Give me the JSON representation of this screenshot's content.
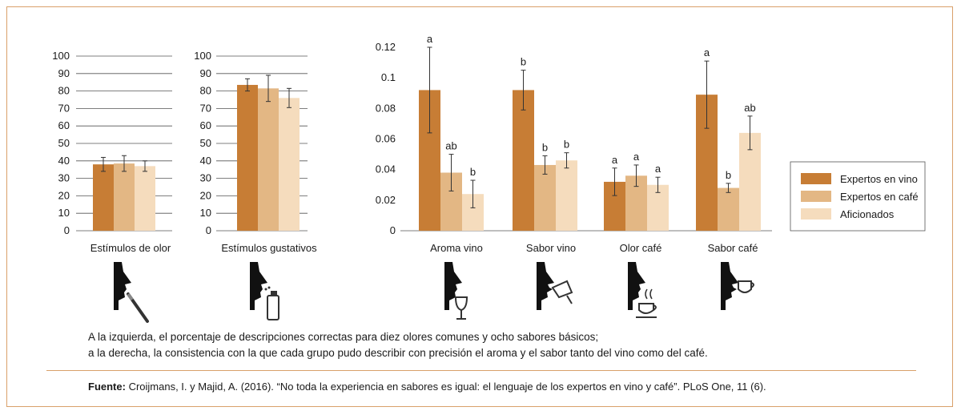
{
  "colors": {
    "expertos_vino": "#c77d35",
    "expertos_cafe": "#e3b784",
    "aficionados": "#f5dcbd",
    "frame": "#d9a06a"
  },
  "chart_data": [
    {
      "type": "bar",
      "categories": [
        "Estímulos de olor"
      ],
      "series": [
        {
          "name": "Expertos en vino",
          "values": [
            38
          ],
          "err": [
            4
          ]
        },
        {
          "name": "Expertos en café",
          "values": [
            38.5
          ],
          "err": [
            4.5
          ]
        },
        {
          "name": "Aficionados",
          "values": [
            37
          ],
          "err": [
            3
          ]
        }
      ],
      "yticks": [
        "0",
        "10",
        "20",
        "30",
        "40",
        "50",
        "60",
        "70",
        "80",
        "90",
        "100"
      ],
      "ylim": [
        0,
        100
      ],
      "grid": true
    },
    {
      "type": "bar",
      "categories": [
        "Estímulos gustativos"
      ],
      "series": [
        {
          "name": "Expertos en vino",
          "values": [
            83.5
          ],
          "err": [
            3.5
          ]
        },
        {
          "name": "Expertos en café",
          "values": [
            81.5
          ],
          "err": [
            7.5
          ]
        },
        {
          "name": "Aficionados",
          "values": [
            76
          ],
          "err": [
            5.5
          ]
        }
      ],
      "yticks": [
        "0",
        "10",
        "20",
        "30",
        "40",
        "50",
        "60",
        "70",
        "80",
        "90",
        "100"
      ],
      "ylim": [
        0,
        100
      ],
      "grid": true
    },
    {
      "type": "bar",
      "categories": [
        "Aroma vino",
        "Sabor vino",
        "Olor café",
        "Sabor café"
      ],
      "series": [
        {
          "name": "Expertos en vino",
          "values": [
            0.092,
            0.092,
            0.032,
            0.089
          ],
          "err": [
            0.028,
            0.013,
            0.009,
            0.022
          ],
          "labels": [
            "a",
            "b",
            "a",
            "a"
          ]
        },
        {
          "name": "Expertos en café",
          "values": [
            0.038,
            0.043,
            0.036,
            0.028
          ],
          "err": [
            0.012,
            0.006,
            0.007,
            0.003
          ],
          "labels": [
            "ab",
            "b",
            "a",
            "b"
          ]
        },
        {
          "name": "Aficionados",
          "values": [
            0.024,
            0.046,
            0.03,
            0.064
          ],
          "err": [
            0.009,
            0.005,
            0.005,
            0.011
          ],
          "labels": [
            "b",
            "b",
            "a",
            "ab"
          ]
        }
      ],
      "yticks": [
        "0",
        "0.02",
        "0.04",
        "0.06",
        "0.08",
        "0.1",
        "0.12"
      ],
      "ylim": [
        0,
        0.12
      ],
      "grid": false,
      "legend": "right"
    }
  ],
  "legend": [
    "Expertos en vino",
    "Expertos en café",
    "Aficionados"
  ],
  "caption": {
    "line1": "A la izquierda, el porcentaje de descripciones correctas para diez olores comunes y ocho sabores básicos;",
    "line2": "a la derecha, la consistencia con la que cada grupo pudo describir con precisión el aroma y el sabor tanto del vino como del café."
  },
  "source": {
    "label": "Fuente:",
    "text": " Croijmans, I. y Majid, A. (2016). “No toda la experiencia en sabores es igual: el lenguaje de los expertos en vino y café”.  PLoS One, 11 (6)."
  },
  "icons": [
    "nose-pen-icon",
    "nose-spray-icon",
    "nose-wine-glass-icon",
    "mouth-wine-glass-icon",
    "nose-coffee-cup-icon",
    "mouth-coffee-cup-icon"
  ]
}
